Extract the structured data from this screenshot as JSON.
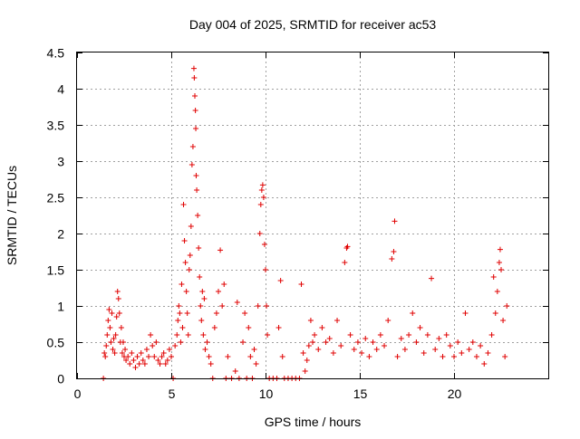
{
  "chart_data": {
    "type": "scatter",
    "title": "Day 004 of 2025, SRMTID for receiver ac53",
    "xlabel": "GPS time / hours",
    "ylabel": "SRMTID / TECUs",
    "xlim": [
      0,
      25
    ],
    "ylim": [
      0,
      4.5
    ],
    "x_ticks": [
      0,
      5,
      10,
      15,
      20
    ],
    "x_tick_labels": [
      "0",
      "5",
      "10",
      "15",
      "20"
    ],
    "y_ticks": [
      0,
      0.5,
      1,
      1.5,
      2,
      2.5,
      3,
      3.5,
      4,
      4.5
    ],
    "y_tick_labels": [
      "0",
      "0.5",
      "1",
      "1.5",
      "2",
      "2.5",
      "3",
      "3.5",
      "4",
      "4.5"
    ],
    "grid": true,
    "marker": "+",
    "color": "#e00000",
    "series": [
      {
        "name": "SRMTID",
        "points": [
          [
            1.4,
            0.0
          ],
          [
            1.45,
            0.35
          ],
          [
            1.5,
            0.3
          ],
          [
            1.55,
            0.45
          ],
          [
            1.6,
            0.6
          ],
          [
            1.65,
            0.8
          ],
          [
            1.7,
            0.95
          ],
          [
            1.75,
            0.7
          ],
          [
            1.8,
            0.5
          ],
          [
            1.85,
            0.9
          ],
          [
            1.9,
            0.4
          ],
          [
            1.95,
            0.55
          ],
          [
            2.0,
            0.35
          ],
          [
            2.05,
            0.6
          ],
          [
            2.1,
            0.85
          ],
          [
            2.15,
            1.2
          ],
          [
            2.2,
            1.1
          ],
          [
            2.25,
            0.9
          ],
          [
            2.3,
            0.5
          ],
          [
            2.35,
            0.7
          ],
          [
            2.4,
            0.35
          ],
          [
            2.45,
            0.5
          ],
          [
            2.5,
            0.3
          ],
          [
            2.55,
            0.4
          ],
          [
            2.6,
            0.25
          ],
          [
            2.7,
            0.3
          ],
          [
            2.8,
            0.2
          ],
          [
            2.9,
            0.35
          ],
          [
            3.0,
            0.25
          ],
          [
            3.1,
            0.15
          ],
          [
            3.2,
            0.3
          ],
          [
            3.3,
            0.2
          ],
          [
            3.4,
            0.35
          ],
          [
            3.5,
            0.25
          ],
          [
            3.6,
            0.2
          ],
          [
            3.7,
            0.4
          ],
          [
            3.8,
            0.3
          ],
          [
            3.9,
            0.6
          ],
          [
            4.0,
            0.45
          ],
          [
            4.1,
            0.3
          ],
          [
            4.2,
            0.5
          ],
          [
            4.3,
            0.25
          ],
          [
            4.4,
            0.2
          ],
          [
            4.5,
            0.3
          ],
          [
            4.6,
            0.35
          ],
          [
            4.7,
            0.2
          ],
          [
            4.8,
            0.25
          ],
          [
            4.9,
            0.4
          ],
          [
            5.0,
            0.3
          ],
          [
            5.1,
            0.0
          ],
          [
            5.2,
            0.45
          ],
          [
            5.3,
            0.6
          ],
          [
            5.35,
            0.8
          ],
          [
            5.4,
            1.0
          ],
          [
            5.45,
            0.9
          ],
          [
            5.5,
            0.5
          ],
          [
            5.55,
            1.3
          ],
          [
            5.6,
            0.7
          ],
          [
            5.65,
            2.4
          ],
          [
            5.7,
            1.9
          ],
          [
            5.75,
            1.6
          ],
          [
            5.8,
            1.2
          ],
          [
            5.85,
            0.9
          ],
          [
            5.9,
            0.6
          ],
          [
            5.95,
            1.5
          ],
          [
            6.0,
            1.7
          ],
          [
            6.05,
            2.1
          ],
          [
            6.1,
            2.95
          ],
          [
            6.15,
            3.2
          ],
          [
            6.2,
            4.28
          ],
          [
            6.22,
            4.15
          ],
          [
            6.25,
            3.9
          ],
          [
            6.28,
            3.7
          ],
          [
            6.3,
            3.45
          ],
          [
            6.32,
            2.8
          ],
          [
            6.35,
            2.6
          ],
          [
            6.4,
            2.25
          ],
          [
            6.45,
            1.8
          ],
          [
            6.5,
            1.4
          ],
          [
            6.55,
            1.0
          ],
          [
            6.6,
            0.8
          ],
          [
            6.65,
            1.2
          ],
          [
            6.7,
            0.6
          ],
          [
            6.75,
            1.1
          ],
          [
            6.8,
            0.4
          ],
          [
            6.9,
            0.5
          ],
          [
            7.0,
            0.3
          ],
          [
            7.1,
            0.2
          ],
          [
            7.2,
            0.0
          ],
          [
            7.3,
            0.7
          ],
          [
            7.4,
            0.9
          ],
          [
            7.5,
            1.2
          ],
          [
            7.6,
            1.77
          ],
          [
            7.7,
            1.0
          ],
          [
            7.8,
            1.3
          ],
          [
            7.9,
            0.0
          ],
          [
            8.0,
            0.3
          ],
          [
            8.2,
            0.0
          ],
          [
            8.4,
            0.1
          ],
          [
            8.5,
            1.05
          ],
          [
            8.6,
            0.0
          ],
          [
            8.8,
            0.5
          ],
          [
            8.9,
            0.9
          ],
          [
            9.0,
            0.0
          ],
          [
            9.1,
            0.7
          ],
          [
            9.2,
            0.3
          ],
          [
            9.3,
            0.0
          ],
          [
            9.4,
            0.4
          ],
          [
            9.5,
            0.2
          ],
          [
            9.6,
            1.0
          ],
          [
            9.7,
            2.0
          ],
          [
            9.75,
            2.4
          ],
          [
            9.8,
            2.6
          ],
          [
            9.85,
            2.67
          ],
          [
            9.9,
            2.5
          ],
          [
            9.95,
            1.85
          ],
          [
            10.0,
            1.5
          ],
          [
            10.05,
            1.0
          ],
          [
            10.1,
            0.6
          ],
          [
            10.2,
            0.0
          ],
          [
            10.4,
            0.0
          ],
          [
            10.6,
            0.0
          ],
          [
            10.7,
            0.7
          ],
          [
            10.8,
            1.35
          ],
          [
            10.9,
            0.3
          ],
          [
            11.0,
            0.0
          ],
          [
            11.2,
            0.0
          ],
          [
            11.4,
            0.0
          ],
          [
            11.6,
            0.0
          ],
          [
            11.8,
            0.0
          ],
          [
            11.9,
            1.3
          ],
          [
            12.0,
            0.35
          ],
          [
            12.1,
            0.1
          ],
          [
            12.2,
            0.25
          ],
          [
            12.3,
            0.45
          ],
          [
            12.4,
            0.8
          ],
          [
            12.5,
            0.5
          ],
          [
            12.6,
            0.6
          ],
          [
            12.8,
            0.4
          ],
          [
            13.0,
            0.7
          ],
          [
            13.2,
            0.5
          ],
          [
            13.4,
            0.55
          ],
          [
            13.6,
            0.35
          ],
          [
            13.8,
            0.8
          ],
          [
            14.0,
            0.45
          ],
          [
            14.2,
            1.6
          ],
          [
            14.3,
            1.8
          ],
          [
            14.35,
            1.82
          ],
          [
            14.5,
            0.6
          ],
          [
            14.7,
            0.4
          ],
          [
            14.9,
            0.5
          ],
          [
            15.1,
            0.35
          ],
          [
            15.3,
            0.55
          ],
          [
            15.5,
            0.3
          ],
          [
            15.7,
            0.5
          ],
          [
            15.9,
            0.4
          ],
          [
            16.1,
            0.6
          ],
          [
            16.3,
            0.45
          ],
          [
            16.5,
            0.8
          ],
          [
            16.7,
            1.65
          ],
          [
            16.8,
            1.75
          ],
          [
            16.85,
            2.17
          ],
          [
            17.0,
            0.3
          ],
          [
            17.2,
            0.55
          ],
          [
            17.4,
            0.4
          ],
          [
            17.6,
            0.6
          ],
          [
            17.8,
            0.9
          ],
          [
            18.0,
            0.5
          ],
          [
            18.2,
            0.7
          ],
          [
            18.4,
            0.35
          ],
          [
            18.6,
            0.6
          ],
          [
            18.8,
            1.38
          ],
          [
            19.0,
            0.4
          ],
          [
            19.2,
            0.55
          ],
          [
            19.4,
            0.3
          ],
          [
            19.6,
            0.6
          ],
          [
            19.8,
            0.45
          ],
          [
            20.0,
            0.3
          ],
          [
            20.2,
            0.5
          ],
          [
            20.4,
            0.35
          ],
          [
            20.6,
            0.9
          ],
          [
            20.8,
            0.4
          ],
          [
            21.0,
            0.5
          ],
          [
            21.2,
            0.3
          ],
          [
            21.4,
            0.45
          ],
          [
            21.6,
            0.2
          ],
          [
            21.8,
            0.35
          ],
          [
            22.0,
            0.6
          ],
          [
            22.1,
            1.4
          ],
          [
            22.2,
            0.9
          ],
          [
            22.3,
            1.2
          ],
          [
            22.4,
            1.6
          ],
          [
            22.45,
            1.78
          ],
          [
            22.5,
            1.5
          ],
          [
            22.6,
            0.8
          ],
          [
            22.7,
            0.3
          ],
          [
            22.8,
            1.0
          ]
        ]
      }
    ]
  }
}
